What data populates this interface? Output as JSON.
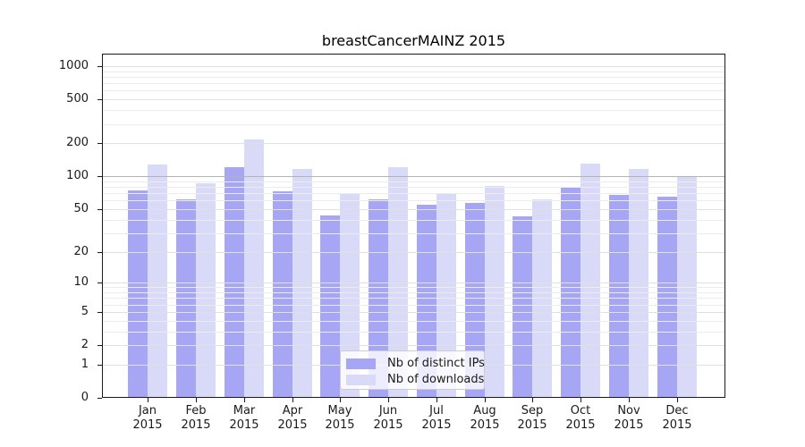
{
  "chart_data": {
    "type": "bar",
    "title": "breastCancerMAINZ 2015",
    "categories": [
      "Jan",
      "Feb",
      "Mar",
      "Apr",
      "May",
      "Jun",
      "Jul",
      "Aug",
      "Sep",
      "Oct",
      "Nov",
      "Dec"
    ],
    "year": "2015",
    "series": [
      {
        "name": "Nb of distinct IPs",
        "color": "#a6a6f5",
        "values": [
          74,
          62,
          120,
          73,
          44,
          62,
          55,
          57,
          43,
          78,
          68,
          65
        ]
      },
      {
        "name": "Nb of downloads",
        "color": "#d9d9f8",
        "values": [
          128,
          86,
          215,
          117,
          69,
          122,
          70,
          82,
          61,
          130,
          116,
          98
        ]
      }
    ],
    "yticks": [
      0,
      1,
      2,
      5,
      10,
      20,
      50,
      100,
      200,
      500,
      1000
    ],
    "yscale": "log1p",
    "ylim": [
      0,
      1300
    ],
    "grid": "horizontal",
    "emphasized_gridline": 100,
    "legend_position": "inside-bottom-center",
    "colors": {
      "grid_minor": "#ececec",
      "grid_major": "#e0e0e0",
      "grid_emphasis": "#b3b3b3",
      "axis": "#1a1a1a",
      "text": "#1a1a1a"
    }
  }
}
